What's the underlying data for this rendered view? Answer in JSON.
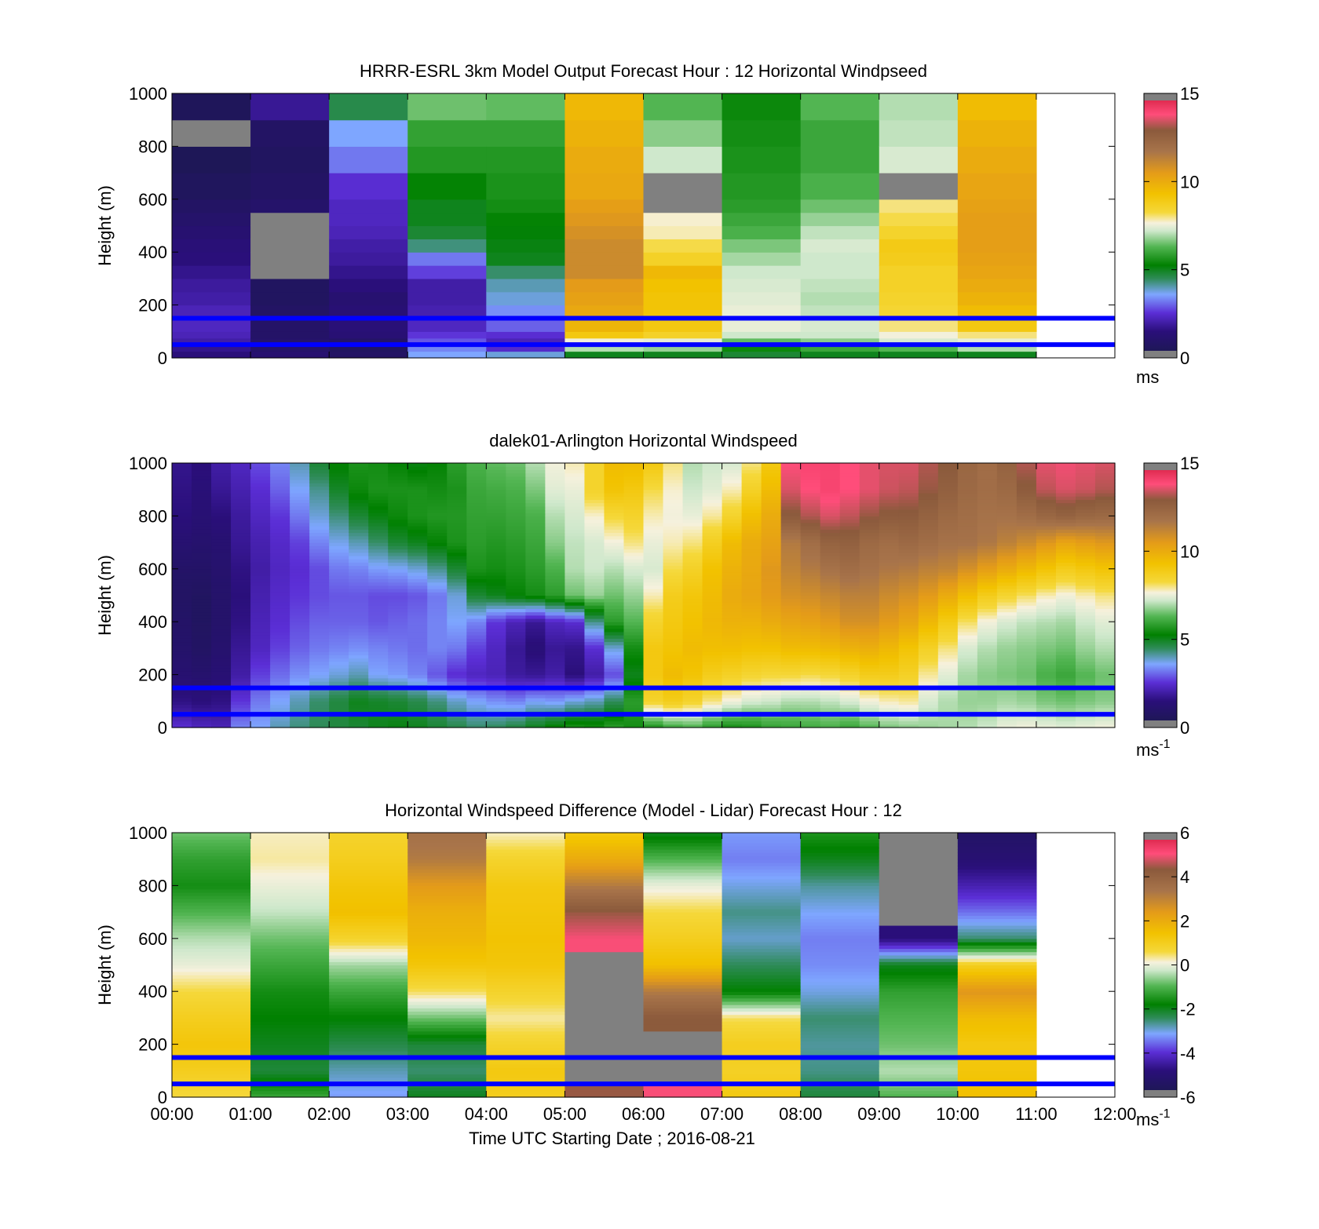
{
  "chart_data": [
    {
      "type": "heatmap",
      "title": "HRRR-ESRL 3km Model Output   Forecast Hour : 12 Horizontal Windpseed",
      "ylabel": "Height (m)",
      "xlabel": "",
      "xlim": [
        0,
        12
      ],
      "ylim": [
        0,
        1000
      ],
      "yticks": [
        "0",
        "200",
        "400",
        "600",
        "800",
        "1000"
      ],
      "xticks": [],
      "colorbar": {
        "range": [
          0,
          15
        ],
        "ticks": [
          "0",
          "5",
          "10",
          "15"
        ],
        "unit": "ms",
        "unit_sup": ""
      },
      "reference_heights": [
        150,
        50
      ],
      "column_width_h": 1,
      "row_heights": [
        0,
        25,
        50,
        75,
        100,
        150,
        200,
        250,
        300,
        350,
        400,
        450,
        500,
        550,
        600,
        700,
        800,
        900,
        1000
      ],
      "columns_value": [
        [
          1.5,
          1.7,
          2.0,
          2.2,
          2.3,
          2.2,
          2.0,
          1.9,
          1.7,
          1.5,
          1.4,
          1.2,
          1.0,
          0.8,
          0.6,
          0.4,
          null,
          0.5,
          0.8
        ],
        [
          1.2,
          1.0,
          1.0,
          0.9,
          0.9,
          0.8,
          0.7,
          0.7,
          null,
          null,
          null,
          null,
          null,
          1.0,
          0.8,
          0.7,
          0.8,
          1.8,
          2.0
        ],
        [
          0.8,
          0.7,
          0.9,
          1.3,
          1.4,
          1.3,
          1.2,
          1.5,
          1.7,
          1.9,
          2.0,
          2.2,
          2.3,
          2.3,
          2.5,
          3.2,
          3.6,
          4.6,
          5.0
        ],
        [
          3.6,
          3.3,
          2.9,
          2.6,
          2.3,
          2.1,
          2.0,
          2.0,
          2.7,
          3.2,
          4.3,
          4.8,
          5.0,
          5.0,
          5.3,
          5.7,
          5.9,
          6.5,
          6.6
        ],
        [
          3.8,
          2.4,
          2.2,
          2.5,
          3.0,
          3.4,
          3.8,
          4.0,
          4.4,
          5.0,
          5.1,
          5.2,
          5.3,
          5.5,
          5.6,
          5.7,
          5.9,
          6.4,
          6.5
        ],
        [
          5.0,
          7.0,
          7.6,
          9.0,
          9.7,
          10.1,
          10.3,
          10.5,
          11.0,
          11.0,
          11.0,
          10.8,
          10.6,
          10.4,
          10.1,
          10.0,
          9.8,
          9.6,
          9.0
        ],
        [
          5.0,
          6.8,
          7.5,
          8.6,
          9.0,
          9.2,
          9.2,
          9.3,
          9.6,
          8.6,
          8.2,
          7.8,
          7.7,
          null,
          null,
          7.2,
          6.7,
          6.3,
          6.0
        ],
        [
          4.8,
          5.4,
          6.4,
          7.2,
          7.5,
          7.5,
          7.4,
          7.3,
          7.2,
          6.9,
          6.6,
          6.2,
          6.0,
          5.8,
          5.7,
          5.6,
          5.5,
          5.4,
          5.3
        ],
        [
          5.0,
          6.0,
          6.7,
          7.2,
          7.3,
          7.1,
          7.0,
          7.1,
          7.2,
          7.2,
          7.3,
          7.1,
          6.8,
          6.5,
          6.2,
          6.0,
          6.0,
          6.3,
          6.3
        ],
        [
          5.0,
          6.3,
          7.3,
          7.6,
          8.0,
          8.4,
          8.5,
          8.6,
          8.6,
          8.8,
          8.9,
          8.5,
          8.2,
          8.0,
          null,
          7.3,
          7.1,
          7.0,
          6.8
        ],
        [
          5.0,
          7.0,
          7.5,
          8.0,
          9.0,
          9.5,
          9.8,
          10.0,
          10.2,
          10.3,
          10.4,
          10.4,
          10.4,
          10.3,
          10.2,
          10.0,
          9.8,
          9.5,
          9.0
        ]
      ]
    },
    {
      "type": "heatmap",
      "title": "dalek01-Arlington  Horizontal Windspeed",
      "ylabel": "Height (m)",
      "xlabel": "",
      "xlim": [
        0,
        12
      ],
      "ylim": [
        0,
        1000
      ],
      "yticks": [
        "0",
        "200",
        "400",
        "600",
        "800",
        "1000"
      ],
      "xticks": [],
      "colorbar": {
        "range": [
          0,
          15
        ],
        "ticks": [
          "0",
          "5",
          "10",
          "15"
        ],
        "unit": "ms",
        "unit_sup": "-1"
      },
      "reference_heights": [
        150,
        50
      ],
      "column_width_h": 0.25,
      "profile_heights": [
        0,
        100,
        200,
        300,
        400,
        500,
        600,
        700,
        800,
        900,
        1000
      ],
      "profiles": [
        [
          2.5,
          1.6,
          1.2,
          1.0,
          0.9,
          0.8,
          0.9,
          1.2,
          1.5,
          1.6,
          1.7
        ],
        [
          2.3,
          1.5,
          1.1,
          0.8,
          0.7,
          0.7,
          0.9,
          1.1,
          1.3,
          1.4,
          1.5
        ],
        [
          2.2,
          1.6,
          1.3,
          1.1,
          1.0,
          1.0,
          1.1,
          1.2,
          1.5,
          1.8,
          2.0
        ],
        [
          3.3,
          2.6,
          2.0,
          1.8,
          1.6,
          1.5,
          1.6,
          1.8,
          1.9,
          2.1,
          2.3
        ],
        [
          3.6,
          3.2,
          2.7,
          2.3,
          2.2,
          2.1,
          2.0,
          2.1,
          2.3,
          2.5,
          2.8
        ],
        [
          4.0,
          3.6,
          3.1,
          2.7,
          2.5,
          2.4,
          2.3,
          2.4,
          2.6,
          3.0,
          3.3
        ],
        [
          4.3,
          4.0,
          3.4,
          3.0,
          2.8,
          2.6,
          2.5,
          2.7,
          3.2,
          3.6,
          4.0
        ],
        [
          4.5,
          4.4,
          3.6,
          3.2,
          3.0,
          2.8,
          2.8,
          3.3,
          3.8,
          4.2,
          4.8
        ],
        [
          4.7,
          4.7,
          3.8,
          3.3,
          3.0,
          2.9,
          3.2,
          3.7,
          4.3,
          4.9,
          5.3
        ],
        [
          4.8,
          5.0,
          4.0,
          3.4,
          3.0,
          2.9,
          3.3,
          4.0,
          4.8,
          5.4,
          5.6
        ],
        [
          5.0,
          4.9,
          3.6,
          3.3,
          2.9,
          2.8,
          3.5,
          4.4,
          5.1,
          5.6,
          5.5
        ],
        [
          5.1,
          4.8,
          3.5,
          3.2,
          3.0,
          2.8,
          3.6,
          4.8,
          5.4,
          5.6,
          5.3
        ],
        [
          5.0,
          4.6,
          3.3,
          3.1,
          3.1,
          2.9,
          3.8,
          5.0,
          5.6,
          5.6,
          5.1
        ],
        [
          4.8,
          4.3,
          2.9,
          3.3,
          3.3,
          3.2,
          4.2,
          5.3,
          5.7,
          5.5,
          5.3
        ],
        [
          4.6,
          3.9,
          2.5,
          3.2,
          3.6,
          3.8,
          4.8,
          5.6,
          5.7,
          5.6,
          5.8
        ],
        [
          4.4,
          3.6,
          2.3,
          2.7,
          3.3,
          4.8,
          5.6,
          5.8,
          5.9,
          6.0,
          6.2
        ],
        [
          4.5,
          3.4,
          2.2,
          2.3,
          2.6,
          5.0,
          5.5,
          5.7,
          5.9,
          6.1,
          6.4
        ],
        [
          4.7,
          3.3,
          1.9,
          1.8,
          2.2,
          5.3,
          5.6,
          5.8,
          6.0,
          6.2,
          6.5
        ],
        [
          5.0,
          3.6,
          1.8,
          1.4,
          1.8,
          5.5,
          5.8,
          6.0,
          6.2,
          6.6,
          7.0
        ],
        [
          5.3,
          3.5,
          2.0,
          1.8,
          2.3,
          5.8,
          6.2,
          6.7,
          7.0,
          7.4,
          7.6
        ],
        [
          5.6,
          3.8,
          1.5,
          1.7,
          2.5,
          6.5,
          7.0,
          7.1,
          7.3,
          7.5,
          7.8
        ],
        [
          5.5,
          4.0,
          2.0,
          2.5,
          4.2,
          6.8,
          7.2,
          7.3,
          7.7,
          8.5,
          8.5
        ],
        [
          5.8,
          4.5,
          2.8,
          3.8,
          5.8,
          6.5,
          7.0,
          7.6,
          8.3,
          9.2,
          9.5
        ],
        [
          5.5,
          5.8,
          5.0,
          5.5,
          6.3,
          6.8,
          7.3,
          8.0,
          8.5,
          9.0,
          9.5
        ],
        [
          5.6,
          8.5,
          9.0,
          9.0,
          8.5,
          7.8,
          7.3,
          7.5,
          7.8,
          8.2,
          9.0
        ],
        [
          6.0,
          8.8,
          9.5,
          9.2,
          9.0,
          8.8,
          8.2,
          7.8,
          7.6,
          7.7,
          8.0
        ],
        [
          6.2,
          8.5,
          9.2,
          9.5,
          9.3,
          9.1,
          8.6,
          8.0,
          7.5,
          7.2,
          7.0
        ],
        [
          5.8,
          8.0,
          8.8,
          9.4,
          9.6,
          9.5,
          9.3,
          8.7,
          7.9,
          7.4,
          7.2
        ],
        [
          5.5,
          7.6,
          8.6,
          9.4,
          9.8,
          10.0,
          9.8,
          9.5,
          8.5,
          7.8,
          7.3
        ],
        [
          5.6,
          7.3,
          8.4,
          9.3,
          9.8,
          10.2,
          10.1,
          10.0,
          9.4,
          8.6,
          8.0
        ],
        [
          5.9,
          7.2,
          8.3,
          9.3,
          10.0,
          10.5,
          10.6,
          10.3,
          10.0,
          9.5,
          9.0
        ],
        [
          6.0,
          7.0,
          8.3,
          9.5,
          10.2,
          10.8,
          11.2,
          11.5,
          12.8,
          13.5,
          13.8
        ],
        [
          6.1,
          7.0,
          8.2,
          9.5,
          10.3,
          10.9,
          11.5,
          12.0,
          13.2,
          13.8,
          14.0
        ],
        [
          6.2,
          7.1,
          8.3,
          9.6,
          10.5,
          11.1,
          11.8,
          12.5,
          13.5,
          14.0,
          14.0
        ],
        [
          6.0,
          7.3,
          8.5,
          9.8,
          10.8,
          11.3,
          12.0,
          12.6,
          13.3,
          13.8,
          13.8
        ],
        [
          6.3,
          7.6,
          8.8,
          9.9,
          10.8,
          11.3,
          11.8,
          12.2,
          13.0,
          13.6,
          13.6
        ],
        [
          6.6,
          7.8,
          8.8,
          9.6,
          10.5,
          11.0,
          11.6,
          12.0,
          12.8,
          13.4,
          13.5
        ],
        [
          6.7,
          7.9,
          8.6,
          9.2,
          10.2,
          10.8,
          11.5,
          12.2,
          12.8,
          13.3,
          13.5
        ],
        [
          6.8,
          7.3,
          7.9,
          8.6,
          9.6,
          10.5,
          11.3,
          12.0,
          12.5,
          13.0,
          13.2
        ],
        [
          6.9,
          7.0,
          7.4,
          8.0,
          8.9,
          10.0,
          11.2,
          11.8,
          12.2,
          12.6,
          12.9
        ],
        [
          7.0,
          6.8,
          6.9,
          7.3,
          8.1,
          9.4,
          10.8,
          11.8,
          12.0,
          12.2,
          12.3
        ],
        [
          7.2,
          6.8,
          6.7,
          7.0,
          7.6,
          8.8,
          10.4,
          11.6,
          11.8,
          12.0,
          12.0
        ],
        [
          7.5,
          6.9,
          6.6,
          6.8,
          7.3,
          8.4,
          10.0,
          11.3,
          11.8,
          12.2,
          12.5
        ],
        [
          7.6,
          6.8,
          6.5,
          6.7,
          7.1,
          8.1,
          9.6,
          11.0,
          12.0,
          12.8,
          13.2
        ],
        [
          7.5,
          6.6,
          6.2,
          6.6,
          7.0,
          7.8,
          9.2,
          10.6,
          12.3,
          13.3,
          13.6
        ],
        [
          7.4,
          6.5,
          6.0,
          6.5,
          6.9,
          7.6,
          8.8,
          10.2,
          12.5,
          13.5,
          13.7
        ],
        [
          7.5,
          6.6,
          6.3,
          6.8,
          7.2,
          7.8,
          9.0,
          10.4,
          12.3,
          13.4,
          13.6
        ],
        [
          7.6,
          6.7,
          6.5,
          7.0,
          7.4,
          8.0,
          9.2,
          10.6,
          12.2,
          13.2,
          13.5
        ]
      ]
    },
    {
      "type": "heatmap",
      "title": "Horizontal Windspeed Difference (Model - Lidar) Forecast Hour : 12",
      "ylabel": "Height (m)",
      "xlabel": "Time UTC  Starting Date ; 2016-08-21",
      "xlim": [
        0,
        12
      ],
      "ylim": [
        0,
        1000
      ],
      "yticks": [
        "0",
        "200",
        "400",
        "600",
        "800",
        "1000"
      ],
      "xticks": [
        "00:00",
        "01:00",
        "02:00",
        "03:00",
        "04:00",
        "05:00",
        "06:00",
        "07:00",
        "08:00",
        "09:00",
        "10:00",
        "11:00",
        "12:00"
      ],
      "colorbar": {
        "range": [
          -6,
          6
        ],
        "ticks": [
          "-6",
          "-4",
          "-2",
          "0",
          "2",
          "4",
          "6"
        ],
        "unit": "ms",
        "unit_sup": "-1"
      },
      "reference_heights": [
        150,
        50
      ],
      "column_width_h": 1,
      "profile_heights": [
        0,
        100,
        200,
        300,
        400,
        500,
        600,
        700,
        800,
        900,
        1000
      ],
      "profiles": [
        [
          0.6,
          1.0,
          1.3,
          1.0,
          0.6,
          0.0,
          -0.4,
          -1.0,
          -1.6,
          -1.3,
          -0.8
        ],
        [
          -1.2,
          -2.2,
          -2.0,
          -1.8,
          -1.6,
          -1.2,
          -0.8,
          -0.3,
          0.0,
          0.3,
          0.2
        ],
        [
          -3.2,
          -2.8,
          -2.3,
          -1.8,
          -1.2,
          -0.5,
          0.8,
          1.5,
          1.3,
          1.0,
          0.8
        ],
        [
          -2.0,
          -2.5,
          -2.2,
          -0.8,
          0.5,
          1.3,
          1.7,
          1.9,
          2.4,
          3.2,
          3.5
        ],
        [
          1.0,
          1.2,
          0.8,
          0.3,
          0.8,
          1.3,
          1.4,
          1.3,
          1.2,
          0.8,
          0.2
        ],
        [
          4.4,
          null,
          null,
          null,
          null,
          null,
          5.0,
          4.4,
          3.2,
          2.0,
          1.2
        ],
        [
          5.0,
          null,
          null,
          4.3,
          3.2,
          1.5,
          1.0,
          0.6,
          0.0,
          -1.0,
          -2.0
        ],
        [
          1.2,
          0.9,
          1.0,
          0.5,
          -1.8,
          -2.4,
          -2.9,
          -2.6,
          -3.0,
          -3.4,
          -3.2
        ],
        [
          -2.2,
          -2.6,
          -2.7,
          -2.5,
          -3.0,
          -3.3,
          -3.4,
          -3.1,
          -2.7,
          -2.0,
          -1.5
        ],
        [
          -1.0,
          -0.4,
          -0.8,
          -1.0,
          -1.3,
          -2.0,
          -4.8,
          null,
          null,
          null,
          null
        ],
        [
          1.5,
          1.3,
          1.2,
          1.6,
          2.5,
          1.0,
          -2.5,
          -3.5,
          -4.3,
          -5.0,
          -5.3
        ]
      ]
    }
  ]
}
